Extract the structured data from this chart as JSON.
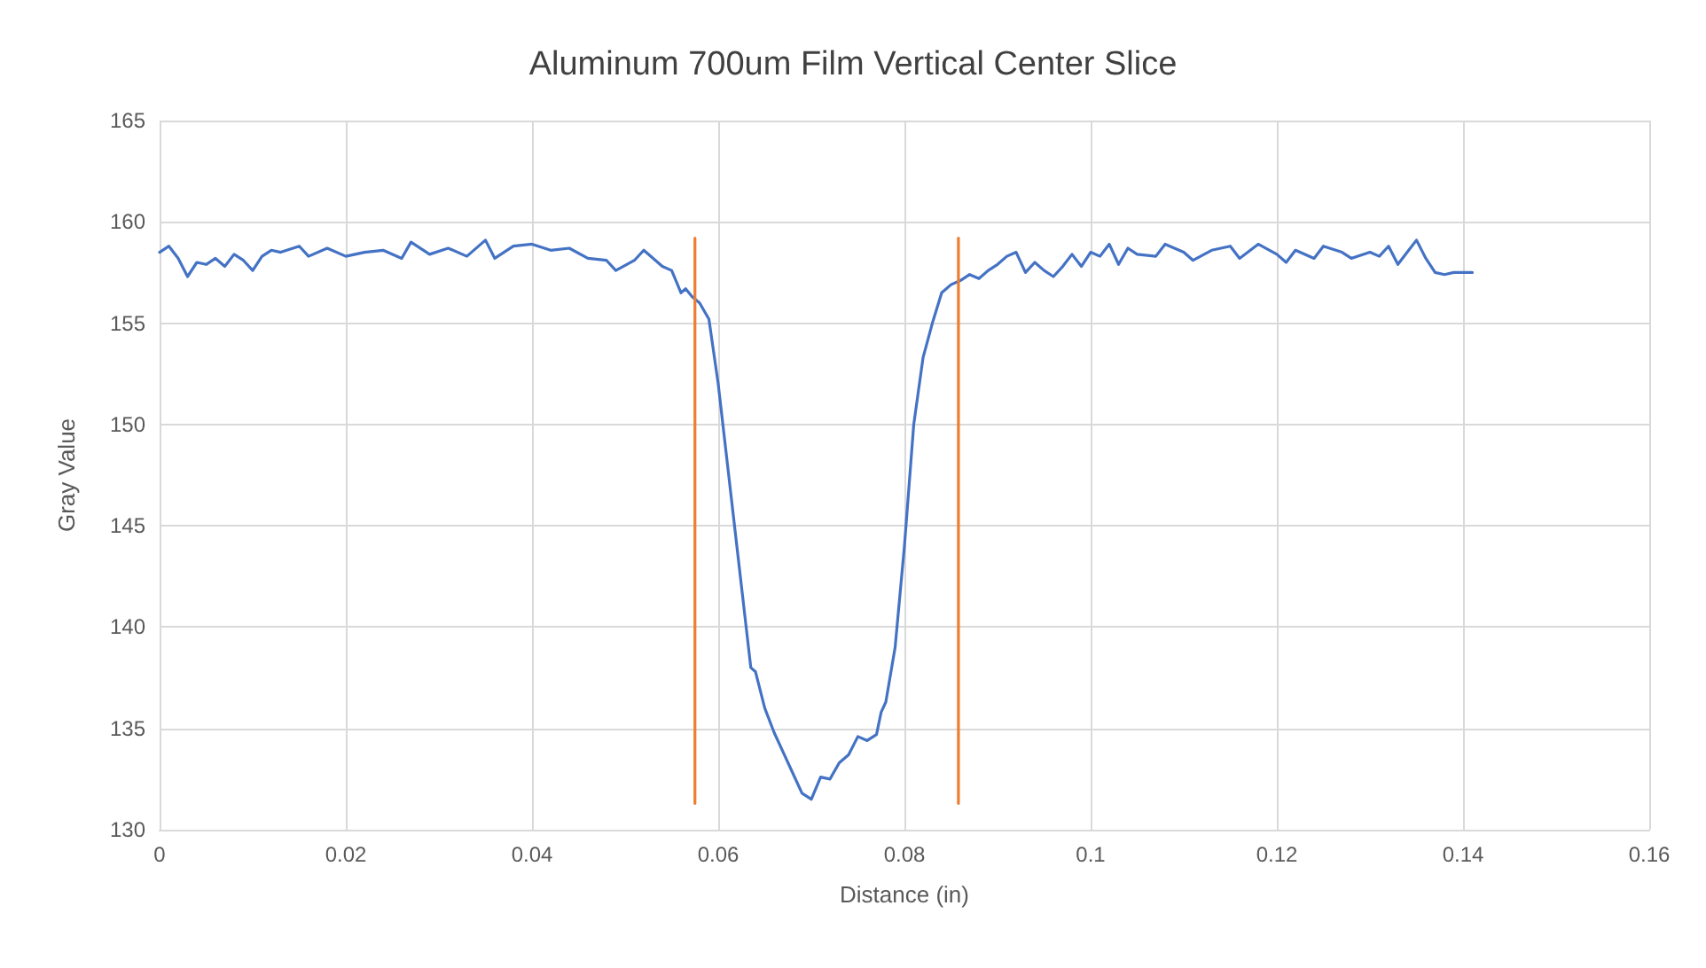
{
  "chart_data": {
    "type": "line",
    "title": "Aluminum 700um Film Vertical Center Slice",
    "xlabel": "Distance (in)",
    "ylabel": "Gray Value",
    "xlim": [
      0,
      0.16
    ],
    "xticks": [
      0,
      0.02,
      0.04,
      0.06,
      0.08,
      0.1,
      0.12,
      0.14,
      0.16
    ],
    "ylim": [
      130,
      165
    ],
    "yticks": [
      130,
      135,
      140,
      145,
      150,
      155,
      160,
      165
    ],
    "grid": true,
    "marker": "none",
    "line_style": "solid",
    "series": [
      {
        "color": "#4472c4",
        "x": [
          0,
          0.001,
          0.002,
          0.003,
          0.004,
          0.005,
          0.006,
          0.007,
          0.008,
          0.009,
          0.01,
          0.011,
          0.012,
          0.013,
          0.015,
          0.016,
          0.018,
          0.02,
          0.022,
          0.024,
          0.026,
          0.027,
          0.029,
          0.031,
          0.033,
          0.035,
          0.036,
          0.038,
          0.04,
          0.042,
          0.044,
          0.046,
          0.048,
          0.049,
          0.051,
          0.052,
          0.054,
          0.055,
          0.056,
          0.0565,
          0.0572,
          0.058,
          0.059,
          0.06,
          0.061,
          0.062,
          0.063,
          0.0635,
          0.064,
          0.065,
          0.066,
          0.067,
          0.068,
          0.069,
          0.07,
          0.071,
          0.072,
          0.073,
          0.074,
          0.075,
          0.076,
          0.077,
          0.0775,
          0.078,
          0.079,
          0.08,
          0.081,
          0.082,
          0.083,
          0.084,
          0.085,
          0.086,
          0.087,
          0.088,
          0.089,
          0.09,
          0.091,
          0.092,
          0.093,
          0.094,
          0.095,
          0.096,
          0.097,
          0.098,
          0.099,
          0.1,
          0.101,
          0.102,
          0.103,
          0.104,
          0.105,
          0.107,
          0.108,
          0.11,
          0.111,
          0.113,
          0.115,
          0.116,
          0.118,
          0.12,
          0.121,
          0.122,
          0.124,
          0.125,
          0.127,
          0.128,
          0.13,
          0.131,
          0.132,
          0.133,
          0.134,
          0.135,
          0.136,
          0.137,
          0.138,
          0.139,
          0.141
        ],
        "values": [
          158.5,
          158.8,
          158.2,
          157.3,
          158.0,
          157.9,
          158.2,
          157.8,
          158.4,
          158.1,
          157.6,
          158.3,
          158.6,
          158.5,
          158.8,
          158.3,
          158.7,
          158.3,
          158.5,
          158.6,
          158.2,
          159.0,
          158.4,
          158.7,
          158.3,
          159.1,
          158.2,
          158.8,
          158.9,
          158.6,
          158.7,
          158.2,
          158.1,
          157.6,
          158.1,
          158.6,
          157.8,
          157.6,
          156.5,
          156.7,
          156.3,
          156.0,
          155.2,
          152,
          148,
          144,
          140,
          138,
          137.8,
          136,
          134.8,
          133.8,
          132.8,
          131.8,
          131.5,
          132.6,
          132.5,
          133.3,
          133.7,
          134.6,
          134.4,
          134.7,
          135.8,
          136.3,
          139,
          144,
          150,
          153.3,
          155,
          156.5,
          156.9,
          157.1,
          157.4,
          157.2,
          157.6,
          157.9,
          158.3,
          158.5,
          157.5,
          158.0,
          157.6,
          157.3,
          157.8,
          158.4,
          157.8,
          158.5,
          158.3,
          158.9,
          157.9,
          158.7,
          158.4,
          158.3,
          158.9,
          158.5,
          158.1,
          158.6,
          158.8,
          158.2,
          158.9,
          158.4,
          158.0,
          158.6,
          158.2,
          158.8,
          158.5,
          158.2,
          158.5,
          158.3,
          158.8,
          157.9,
          158.5,
          159.1,
          158.2,
          157.5,
          157.4,
          157.5,
          157.5
        ]
      },
      {
        "color": "#ed7d31",
        "x": [
          0.0575,
          0.0575
        ],
        "values": [
          131.3,
          159.2
        ]
      },
      {
        "color": "#ed7d31",
        "x": [
          0.0858,
          0.0858
        ],
        "values": [
          131.3,
          159.2
        ]
      }
    ]
  }
}
